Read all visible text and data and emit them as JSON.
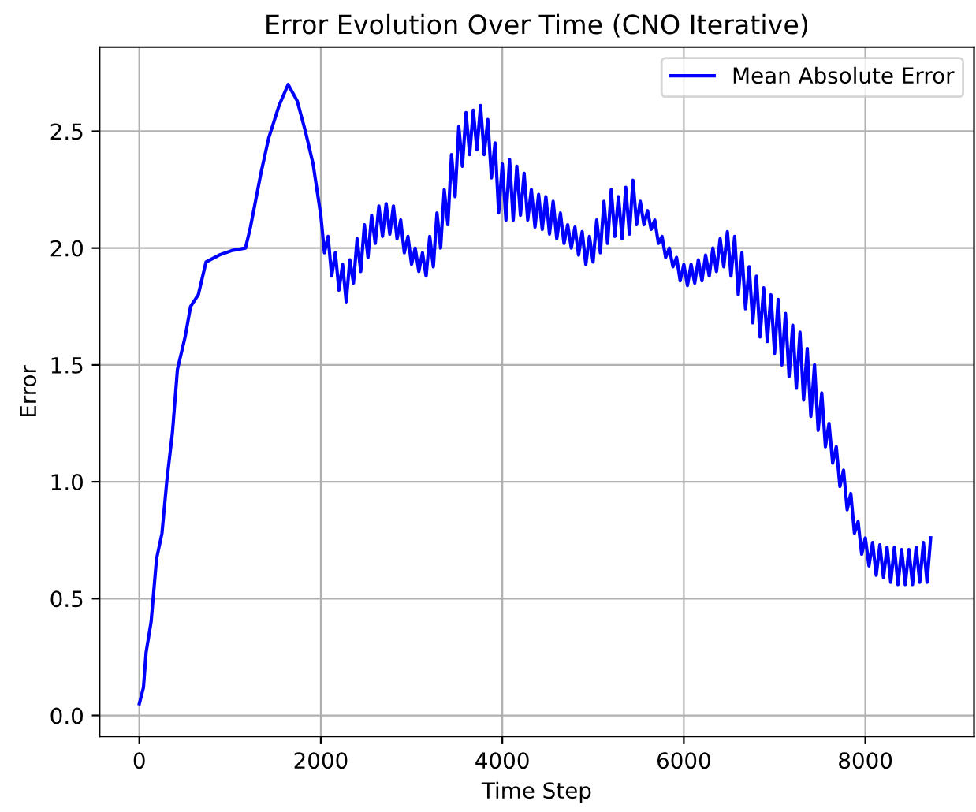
{
  "chart_data": {
    "type": "line",
    "title": "Error Evolution Over Time (CNO Iterative)",
    "xlabel": "Time Step",
    "ylabel": "Error",
    "xlim": [
      -438,
      9198
    ],
    "ylim": [
      -0.09,
      2.86
    ],
    "xticks": [
      0,
      2000,
      4000,
      6000,
      8000
    ],
    "yticks": [
      {
        "value": 0,
        "label": "0.0"
      },
      {
        "value": 0.5,
        "label": "0.5"
      },
      {
        "value": 1,
        "label": "1.0"
      },
      {
        "value": 1.5,
        "label": "1.5"
      },
      {
        "value": 2,
        "label": "2.0"
      },
      {
        "value": 2.5,
        "label": "2.5"
      }
    ],
    "grid": true,
    "legend": "top right",
    "line_style": "solid",
    "x": [
      0,
      46,
      75,
      130,
      190,
      250,
      305,
      365,
      420,
      505,
      565,
      650,
      735,
      880,
      1025,
      1170,
      1225,
      1340,
      1425,
      1540,
      1640,
      1740,
      1830,
      1915,
      2000,
      2040,
      2080,
      2120,
      2160,
      2200,
      2240,
      2280,
      2320,
      2360,
      2400,
      2440,
      2480,
      2520,
      2560,
      2600,
      2640,
      2680,
      2720,
      2760,
      2800,
      2840,
      2880,
      2920,
      2960,
      3000,
      3040,
      3080,
      3120,
      3160,
      3200,
      3240,
      3280,
      3320,
      3360,
      3400,
      3440,
      3480,
      3520,
      3560,
      3600,
      3640,
      3680,
      3720,
      3760,
      3800,
      3840,
      3880,
      3920,
      3960,
      4000,
      4040,
      4080,
      4120,
      4160,
      4200,
      4240,
      4280,
      4320,
      4360,
      4400,
      4440,
      4480,
      4520,
      4560,
      4600,
      4640,
      4680,
      4720,
      4760,
      4800,
      4840,
      4880,
      4920,
      4960,
      5000,
      5040,
      5080,
      5120,
      5160,
      5200,
      5240,
      5280,
      5320,
      5360,
      5400,
      5440,
      5480,
      5520,
      5560,
      5600,
      5640,
      5680,
      5720,
      5760,
      5800,
      5840,
      5880,
      5920,
      5960,
      6000,
      6040,
      6080,
      6120,
      6160,
      6200,
      6240,
      6280,
      6320,
      6360,
      6400,
      6440,
      6480,
      6520,
      6560,
      6600,
      6640,
      6680,
      6720,
      6760,
      6800,
      6840,
      6880,
      6920,
      6960,
      7000,
      7040,
      7080,
      7120,
      7160,
      7200,
      7240,
      7280,
      7320,
      7360,
      7400,
      7440,
      7480,
      7520,
      7560,
      7600,
      7640,
      7680,
      7720,
      7760,
      7800,
      7840,
      7880,
      7920,
      7960,
      8000,
      8040,
      8080,
      8120,
      8160,
      8200,
      8240,
      8280,
      8320,
      8360,
      8400,
      8440,
      8480,
      8520,
      8560,
      8600,
      8640,
      8680,
      8720
    ],
    "series": [
      {
        "name": "Mean Absolute Error",
        "color": "#0000ff",
        "values": [
          0.05,
          0.12,
          0.27,
          0.4,
          0.67,
          0.78,
          1.01,
          1.21,
          1.48,
          1.62,
          1.75,
          1.8,
          1.94,
          1.97,
          1.99,
          2.0,
          2.09,
          2.32,
          2.47,
          2.61,
          2.7,
          2.63,
          2.5,
          2.36,
          2.14,
          1.98,
          2.05,
          1.88,
          1.98,
          1.82,
          1.93,
          1.77,
          1.95,
          1.85,
          2.04,
          1.9,
          2.1,
          1.96,
          2.14,
          2.02,
          2.18,
          2.05,
          2.19,
          2.06,
          2.18,
          2.04,
          2.12,
          1.98,
          2.05,
          1.93,
          2.0,
          1.9,
          1.98,
          1.88,
          2.05,
          1.92,
          2.15,
          2.0,
          2.25,
          2.1,
          2.4,
          2.22,
          2.52,
          2.35,
          2.58,
          2.4,
          2.59,
          2.42,
          2.61,
          2.4,
          2.55,
          2.3,
          2.45,
          2.15,
          2.36,
          2.12,
          2.38,
          2.12,
          2.35,
          2.14,
          2.32,
          2.12,
          2.25,
          2.09,
          2.23,
          2.08,
          2.22,
          2.06,
          2.2,
          2.04,
          2.15,
          2.02,
          2.1,
          2.0,
          2.09,
          1.97,
          2.07,
          1.93,
          2.05,
          1.94,
          2.12,
          1.98,
          2.2,
          2.02,
          2.25,
          2.05,
          2.22,
          2.04,
          2.26,
          2.06,
          2.29,
          2.1,
          2.2,
          2.1,
          2.16,
          2.08,
          2.12,
          2.02,
          2.05,
          1.96,
          2.0,
          1.92,
          1.96,
          1.86,
          1.93,
          1.84,
          1.93,
          1.85,
          1.95,
          1.86,
          1.97,
          1.88,
          2.0,
          1.9,
          2.04,
          1.92,
          2.07,
          1.88,
          2.05,
          1.8,
          1.98,
          1.74,
          1.92,
          1.68,
          1.88,
          1.62,
          1.83,
          1.6,
          1.8,
          1.55,
          1.78,
          1.5,
          1.72,
          1.45,
          1.67,
          1.4,
          1.64,
          1.35,
          1.57,
          1.28,
          1.5,
          1.22,
          1.38,
          1.15,
          1.25,
          1.08,
          1.15,
          0.98,
          1.05,
          0.88,
          0.95,
          0.78,
          0.83,
          0.69,
          0.76,
          0.64,
          0.74,
          0.6,
          0.73,
          0.59,
          0.72,
          0.57,
          0.72,
          0.56,
          0.71,
          0.56,
          0.71,
          0.56,
          0.72,
          0.57,
          0.74,
          0.57,
          0.76
        ]
      }
    ]
  }
}
